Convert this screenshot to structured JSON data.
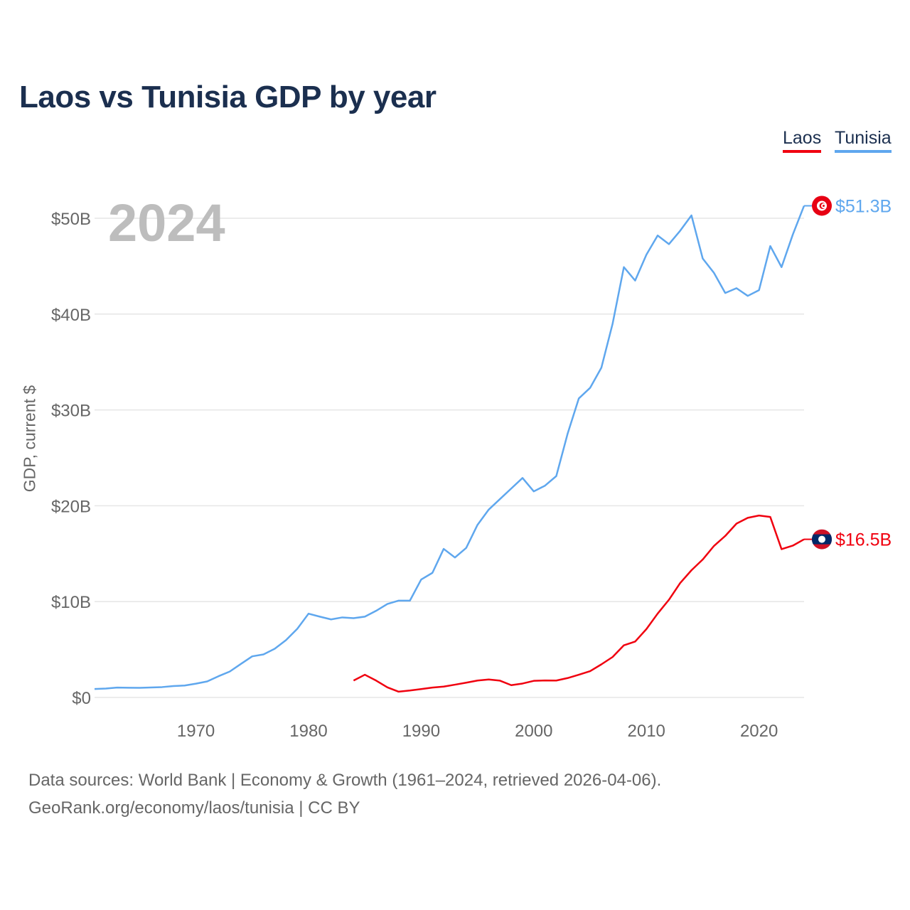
{
  "title": "Laos vs Tunisia GDP by year",
  "legend": [
    {
      "label": "Laos",
      "color": "#f0000f"
    },
    {
      "label": "Tunisia",
      "color": "#5fa7ee"
    }
  ],
  "year_label": "2024",
  "footer": {
    "line1": "Data sources: World Bank | Economy & Growth (1961–2024, retrieved 2026-04-06).",
    "line2": "GeoRank.org/economy/laos/tunisia | CC BY"
  },
  "chart_data": {
    "type": "line",
    "title": "Laos vs Tunisia GDP by year",
    "xlabel": "",
    "ylabel": "GDP, current $",
    "xlim": [
      1961,
      2024
    ],
    "ylim": [
      0,
      50
    ],
    "grid": true,
    "legend_placement": "top-right",
    "x_ticks": [
      1970,
      1980,
      1990,
      2000,
      2010,
      2020
    ],
    "y_ticks": [
      {
        "v": 0,
        "label": "$0"
      },
      {
        "v": 10,
        "label": "$10B"
      },
      {
        "v": 20,
        "label": "$20B"
      },
      {
        "v": 30,
        "label": "$30B"
      },
      {
        "v": 40,
        "label": "$40B"
      },
      {
        "v": 50,
        "label": "$50B"
      }
    ],
    "units": "billions USD",
    "series": [
      {
        "name": "Tunisia",
        "color": "#5fa7ee",
        "end_label": "$51.3B",
        "flag": "tunisia-flag",
        "start_year": 1961,
        "values": [
          0.88,
          0.93,
          1.03,
          1.01,
          1.0,
          1.04,
          1.08,
          1.19,
          1.24,
          1.44,
          1.67,
          2.21,
          2.7,
          3.5,
          4.29,
          4.49,
          5.08,
          5.98,
          7.16,
          8.74,
          8.43,
          8.14,
          8.35,
          8.27,
          8.43,
          9.04,
          9.75,
          10.1,
          10.1,
          12.3,
          13.0,
          15.5,
          14.6,
          15.6,
          18.0,
          19.6,
          20.7,
          21.8,
          22.9,
          21.5,
          22.1,
          23.1,
          27.5,
          31.2,
          32.3,
          34.4,
          39.0,
          44.9,
          43.5,
          46.2,
          48.2,
          47.3,
          48.7,
          50.3,
          45.8,
          44.3,
          42.2,
          42.7,
          41.9,
          42.5,
          47.1,
          44.9,
          48.3,
          51.3
        ]
      },
      {
        "name": "Laos",
        "color": "#f0000f",
        "end_label": "$16.5B",
        "flag": "laos-flag",
        "start_year": 1984,
        "values": [
          1.76,
          2.37,
          1.76,
          1.05,
          0.6,
          0.72,
          0.87,
          1.03,
          1.13,
          1.33,
          1.54,
          1.76,
          1.87,
          1.75,
          1.28,
          1.45,
          1.73,
          1.77,
          1.76,
          2.02,
          2.37,
          2.74,
          3.45,
          4.22,
          5.44,
          5.83,
          7.13,
          8.75,
          10.19,
          11.94,
          13.27,
          14.39,
          15.81,
          16.85,
          18.14,
          18.74,
          18.98,
          18.83,
          15.47,
          15.84,
          16.5
        ]
      }
    ]
  }
}
